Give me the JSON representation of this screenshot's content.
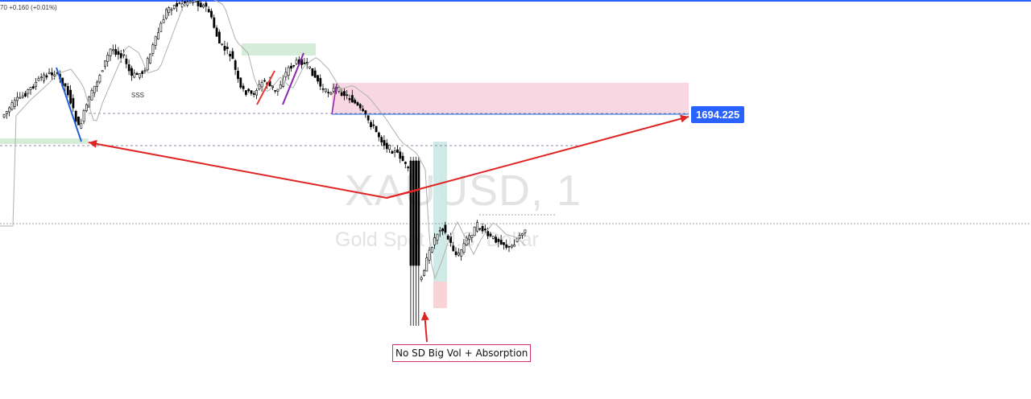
{
  "ohlc_readout": "70 +0.160 (+0.01%)",
  "chart_data": {
    "type": "candlestick",
    "symbol_watermark": "XAUUSD, 1",
    "symbol_description": "Gold Spot / U.S. Dollar",
    "price_label": "1694.225",
    "annotation": "No SD Big Vol + Absorption",
    "minor_label": "SSS",
    "colors": {
      "candle": "#000000",
      "ma": "#b0b0b0",
      "supply_zone": "#f8d7e3",
      "demand_zone": "#d5ecd8",
      "arrow": "#e02424",
      "price_tag": "#2962ff",
      "annotation_border": "#d6336c",
      "pattern_red": "#e53935",
      "pattern_purple": "#8e24aa",
      "pattern_blue": "#1e64d8",
      "position_long": "#cbe8e4",
      "position_short": "#f8cfd3"
    }
  }
}
